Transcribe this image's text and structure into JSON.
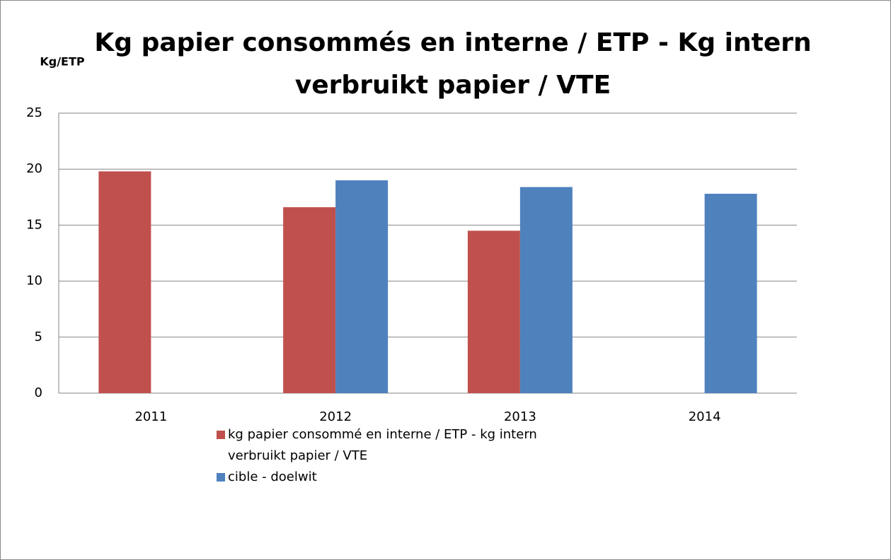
{
  "chart_data": {
    "type": "bar",
    "title": [
      "Kg papier consommés en interne / ETP - Kg intern",
      "verbruikt papier / VTE"
    ],
    "y_label": "Kg/ETP",
    "categories": [
      "2011",
      "2012",
      "2013",
      "2014"
    ],
    "series": [
      {
        "name": "kg papier consommé en interne / ETP - kg intern verbruikt papier / VTE",
        "color": "#c0504d",
        "values": [
          19.8,
          16.6,
          14.5,
          null
        ]
      },
      {
        "name": "cible - doelwit",
        "color": "#4f81bd",
        "values": [
          null,
          19.0,
          18.4,
          17.8
        ]
      }
    ],
    "ylim": [
      0,
      25
    ],
    "yticks": [
      0,
      5,
      10,
      15,
      20,
      25
    ],
    "grid": true,
    "legend": "bottom"
  }
}
